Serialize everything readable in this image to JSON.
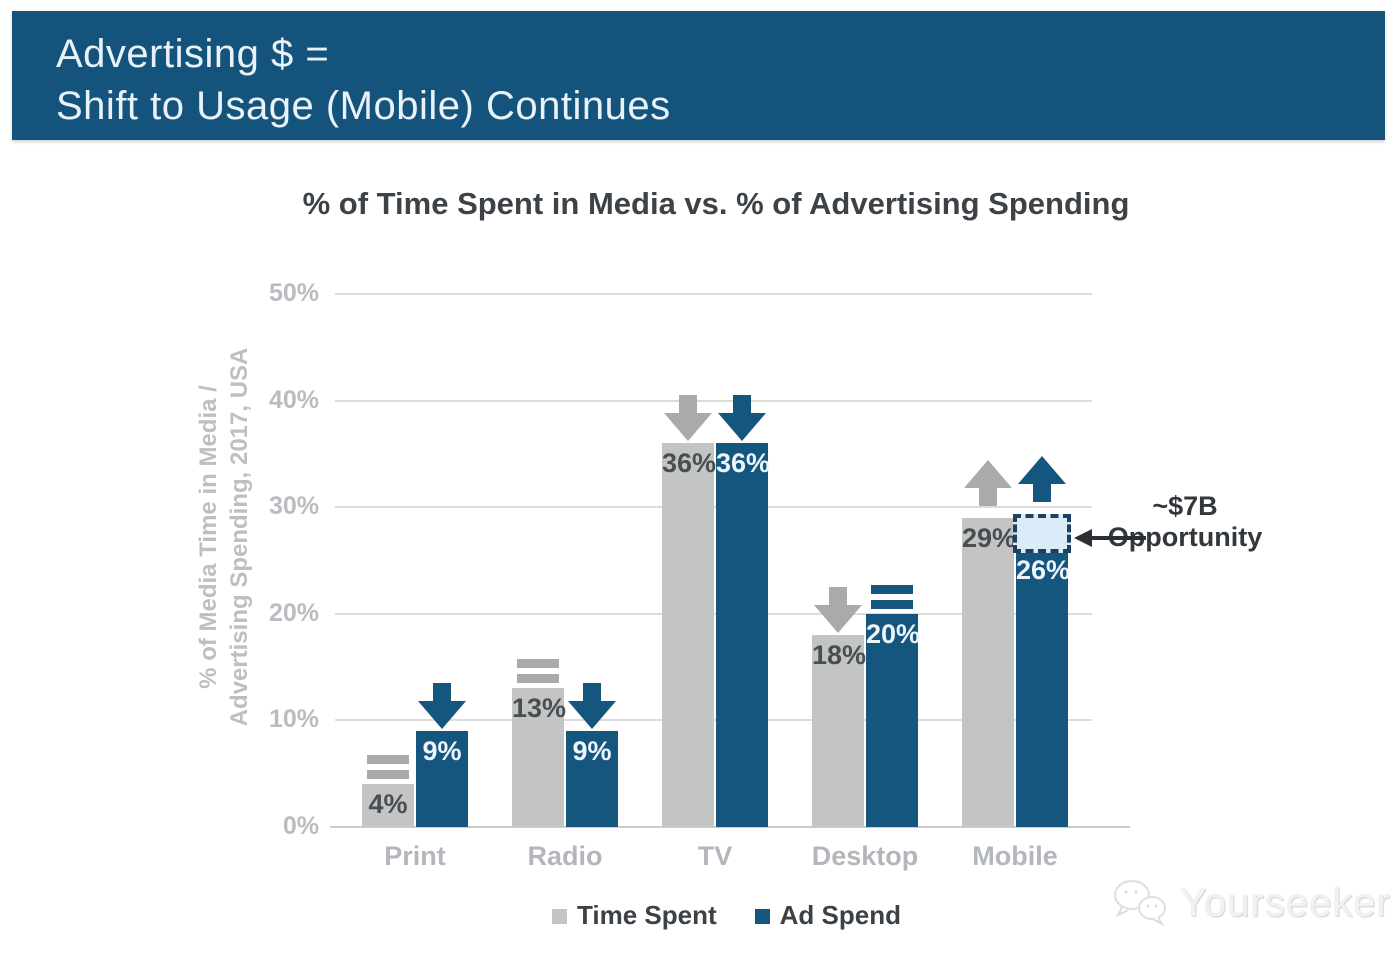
{
  "header": {
    "line1": "Advertising $ =",
    "line2": "Shift to Usage (Mobile) Continues",
    "bg_color": "#14537c",
    "text_color": "#e9f2f8"
  },
  "chart_data": {
    "type": "bar",
    "title": "% of Time Spent in Media vs. % of Advertising Spending",
    "ylabel_line1": "% of Media Time in Media /",
    "ylabel_line2": "Advertising Spending, 2017, USA",
    "categories": [
      "Print",
      "Radio",
      "TV",
      "Desktop",
      "Mobile"
    ],
    "series": [
      {
        "name": "Time Spent",
        "color": "#c3c4c4",
        "label_color": "#4a4e53",
        "arrow_color": "#a9aaab",
        "values": [
          4,
          13,
          36,
          18,
          29
        ],
        "trends": [
          "equal",
          "equal",
          "down",
          "down",
          "up"
        ]
      },
      {
        "name": "Ad Spend",
        "color": "#15567f",
        "label_color": "#edf5fb",
        "arrow_color": "#15567f",
        "values": [
          9,
          9,
          36,
          20,
          26
        ],
        "trends": [
          "down",
          "down",
          "down",
          "equal",
          "up"
        ]
      }
    ],
    "ylim": [
      0,
      50
    ],
    "yticks": [
      {
        "value": 0,
        "label": "0%"
      },
      {
        "value": 10,
        "label": "10%"
      },
      {
        "value": 20,
        "label": "20%"
      },
      {
        "value": 30,
        "label": "30%"
      },
      {
        "value": 40,
        "label": "40%"
      },
      {
        "value": 50,
        "label": "50%"
      }
    ],
    "grid": true,
    "legend_position": "bottom",
    "annotation": {
      "line1": "~$7B",
      "line2": "Opportunity",
      "category": "Mobile",
      "series": "Ad Spend",
      "box_from": 26,
      "box_to": 29.4,
      "box_fill": "#daecf8",
      "box_border": "#1d3f60",
      "arrow_color": "#2b2f33"
    }
  },
  "watermark": {
    "text": "Yourseeker"
  }
}
